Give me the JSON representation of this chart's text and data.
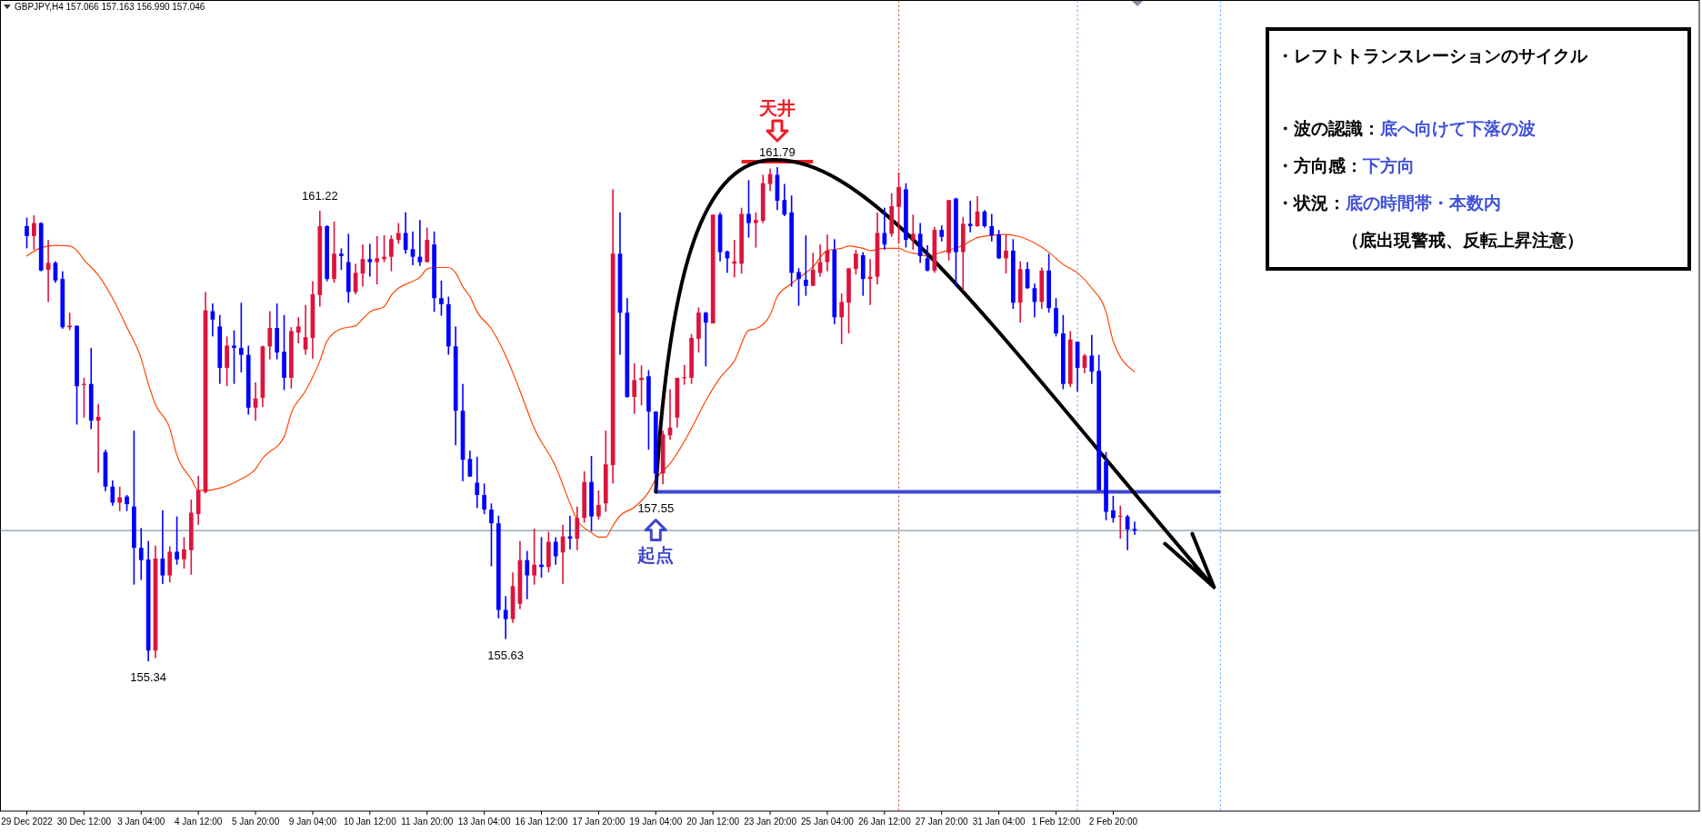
{
  "chart_data": {
    "type": "candlestick",
    "title": "・レフトトランスレーションのサイクル",
    "subtitle": "GBPJPY,H4  157.066 157.163 156.990 157.046",
    "categories": [
      "29 Dec 2022",
      null,
      null,
      null,
      null,
      null,
      null,
      null,
      "30 Dec 12:00",
      null,
      null,
      null,
      null,
      null,
      null,
      null,
      "3 Jan 04:00",
      null,
      null,
      null,
      null,
      null,
      null,
      null,
      "4 Jan 12:00",
      null,
      null,
      null,
      null,
      null,
      null,
      null,
      "5 Jan 20:00",
      null,
      null,
      null,
      null,
      null,
      null,
      null,
      "9 Jan 04:00",
      null,
      null,
      null,
      null,
      null,
      null,
      null,
      "10 Jan 12:00",
      null,
      null,
      null,
      null,
      null,
      null,
      null,
      "11 Jan 20:00",
      null,
      null,
      null,
      null,
      null,
      null,
      null,
      "13 Jan 04:00",
      null,
      null,
      null,
      null,
      null,
      null,
      null,
      "16 Jan 12:00",
      null,
      null,
      null,
      null,
      null,
      null,
      null,
      "17 Jan 20:00",
      null,
      null,
      null,
      null,
      null,
      null,
      null,
      "19 Jan 04:00",
      null,
      null,
      null,
      null,
      null,
      null,
      null,
      "20 Jan 12:00",
      null,
      null,
      null,
      null,
      null,
      null,
      null,
      "23 Jan 20:00",
      null,
      null,
      null,
      null,
      null,
      null,
      null,
      "25 Jan 04:00",
      null,
      null,
      null,
      null,
      null,
      null,
      null,
      "26 Jan 12:00",
      null,
      null,
      null,
      null,
      null,
      null,
      null,
      "27 Jan 20:00",
      null,
      null,
      null,
      null,
      null,
      null,
      null,
      "31 Jan 04:00",
      null,
      null,
      null,
      null,
      null,
      null,
      null,
      "1 Feb 12:00",
      null,
      null,
      null,
      null,
      null,
      null,
      null,
      "2 Feb 20:00",
      null,
      null,
      null
    ],
    "ohlc": [
      [
        161.02,
        161.13,
        160.73,
        160.89
      ],
      [
        160.89,
        161.16,
        160.71,
        161.06
      ],
      [
        161.06,
        161.07,
        160.43,
        160.44
      ],
      [
        160.45,
        160.84,
        160.03,
        160.54
      ],
      [
        160.54,
        160.56,
        160.28,
        160.31
      ],
      [
        160.33,
        160.43,
        159.68,
        159.7
      ],
      [
        159.7,
        159.89,
        159.66,
        159.72
      ],
      [
        159.72,
        159.72,
        158.43,
        158.93
      ],
      [
        158.95,
        159.04,
        158.52,
        158.96
      ],
      [
        158.96,
        159.43,
        158.37,
        158.48
      ],
      [
        158.48,
        158.7,
        157.8,
        158.53
      ],
      [
        158.07,
        158.1,
        157.56,
        157.62
      ],
      [
        157.62,
        157.7,
        157.37,
        157.41
      ],
      [
        157.41,
        157.62,
        157.3,
        157.48
      ],
      [
        157.49,
        157.51,
        157.3,
        157.39
      ],
      [
        157.36,
        158.35,
        156.34,
        156.82
      ],
      [
        156.82,
        157.08,
        156.4,
        156.66
      ],
      [
        156.67,
        156.91,
        155.34,
        155.48
      ],
      [
        155.48,
        156.85,
        155.38,
        156.68
      ],
      [
        156.68,
        157.31,
        156.35,
        156.46
      ],
      [
        156.46,
        156.84,
        156.37,
        156.77
      ],
      [
        156.77,
        157.23,
        156.6,
        156.67
      ],
      [
        156.67,
        156.96,
        156.55,
        156.8
      ],
      [
        156.79,
        157.45,
        156.47,
        157.28
      ],
      [
        157.26,
        157.76,
        157.12,
        157.57
      ],
      [
        157.55,
        160.16,
        157.53,
        159.92
      ],
      [
        159.91,
        160.01,
        159.58,
        159.8
      ],
      [
        159.71,
        159.86,
        158.96,
        159.17
      ],
      [
        159.17,
        159.58,
        158.93,
        159.46
      ],
      [
        159.46,
        159.66,
        158.96,
        159.43
      ],
      [
        159.43,
        160.02,
        159.11,
        159.34
      ],
      [
        159.34,
        159.46,
        158.56,
        158.65
      ],
      [
        158.65,
        158.98,
        158.48,
        158.77
      ],
      [
        158.78,
        159.46,
        158.66,
        159.45
      ],
      [
        159.45,
        159.91,
        159.28,
        159.69
      ],
      [
        159.69,
        160.01,
        159.28,
        159.37
      ],
      [
        159.38,
        159.86,
        158.88,
        159.04
      ],
      [
        159.04,
        159.7,
        158.9,
        159.65
      ],
      [
        159.63,
        159.83,
        159.49,
        159.71
      ],
      [
        159.41,
        159.99,
        159.34,
        159.57
      ],
      [
        159.56,
        160.3,
        159.29,
        160.13
      ],
      [
        160.12,
        161.22,
        159.97,
        161.02
      ],
      [
        161.02,
        161.03,
        160.3,
        160.33
      ],
      [
        160.33,
        161.08,
        160.28,
        160.66
      ],
      [
        160.66,
        160.73,
        160.45,
        160.63
      ],
      [
        160.55,
        160.92,
        160.02,
        160.16
      ],
      [
        160.16,
        160.53,
        160.13,
        160.41
      ],
      [
        160.4,
        160.78,
        160.23,
        160.59
      ],
      [
        160.59,
        160.79,
        160.36,
        160.55
      ],
      [
        160.55,
        160.89,
        160.26,
        160.6
      ],
      [
        160.59,
        160.9,
        160.55,
        160.62
      ],
      [
        160.62,
        160.9,
        160.43,
        160.85
      ],
      [
        160.84,
        161.06,
        160.79,
        160.93
      ],
      [
        160.93,
        161.2,
        160.66,
        160.71
      ],
      [
        160.72,
        160.95,
        160.51,
        160.62
      ],
      [
        160.62,
        161.1,
        160.5,
        160.55
      ],
      [
        160.55,
        161.0,
        160.55,
        160.84
      ],
      [
        160.78,
        160.95,
        159.9,
        160.08
      ],
      [
        160.08,
        160.31,
        159.85,
        160.0
      ],
      [
        160.0,
        160.1,
        159.34,
        159.45
      ],
      [
        159.45,
        159.71,
        158.16,
        158.61
      ],
      [
        158.61,
        158.96,
        157.69,
        157.97
      ],
      [
        157.98,
        158.09,
        157.75,
        157.75
      ],
      [
        157.67,
        158.01,
        157.34,
        157.51
      ],
      [
        157.51,
        157.66,
        157.26,
        157.32
      ],
      [
        157.32,
        157.4,
        156.58,
        157.14
      ],
      [
        157.14,
        157.24,
        155.9,
        156.01
      ],
      [
        156.01,
        156.19,
        155.63,
        155.89
      ],
      [
        155.89,
        156.5,
        155.84,
        156.32
      ],
      [
        156.09,
        156.91,
        156.02,
        156.66
      ],
      [
        156.66,
        156.78,
        156.15,
        156.46
      ],
      [
        156.46,
        157.07,
        156.34,
        156.6
      ],
      [
        156.6,
        156.96,
        156.43,
        156.57
      ],
      [
        156.57,
        157.03,
        156.5,
        156.9
      ],
      [
        156.9,
        156.96,
        156.6,
        156.71
      ],
      [
        156.76,
        157.12,
        156.35,
        156.97
      ],
      [
        156.97,
        157.24,
        156.8,
        156.94
      ],
      [
        156.94,
        157.36,
        156.79,
        157.21
      ],
      [
        157.21,
        157.82,
        157.15,
        157.68
      ],
      [
        157.68,
        158.02,
        157.04,
        157.23
      ],
      [
        157.23,
        157.57,
        157.19,
        157.38
      ],
      [
        157.4,
        158.35,
        157.29,
        157.91
      ],
      [
        157.9,
        161.5,
        157.66,
        160.66
      ],
      [
        160.66,
        161.2,
        159.34,
        159.89
      ],
      [
        159.89,
        160.08,
        158.78,
        158.79
      ],
      [
        158.79,
        159.23,
        158.57,
        159.01
      ],
      [
        159.01,
        159.2,
        158.68,
        159.04
      ],
      [
        159.06,
        159.14,
        158.1,
        158.6
      ],
      [
        158.6,
        158.6,
        157.55,
        157.79
      ],
      [
        157.79,
        158.35,
        157.65,
        158.3
      ],
      [
        158.29,
        158.89,
        158.23,
        158.39
      ],
      [
        158.52,
        159.04,
        158.39,
        159.04
      ],
      [
        159.04,
        159.21,
        158.95,
        159.05
      ],
      [
        159.04,
        159.61,
        158.96,
        159.56
      ],
      [
        159.55,
        159.96,
        159.37,
        159.89
      ],
      [
        159.89,
        159.9,
        159.19,
        159.76
      ],
      [
        159.75,
        161.17,
        159.75,
        161.17
      ],
      [
        161.17,
        161.2,
        160.56,
        160.68
      ],
      [
        160.69,
        160.7,
        160.41,
        160.6
      ],
      [
        160.53,
        160.84,
        160.35,
        160.56
      ],
      [
        160.53,
        161.26,
        160.4,
        161.18
      ],
      [
        161.18,
        161.62,
        160.87,
        161.06
      ],
      [
        161.06,
        161.2,
        160.74,
        161.1
      ],
      [
        161.09,
        161.69,
        161.06,
        161.58
      ],
      [
        161.57,
        161.77,
        161.48,
        161.7
      ],
      [
        161.69,
        161.79,
        161.23,
        161.35
      ],
      [
        161.36,
        161.57,
        161.15,
        161.17
      ],
      [
        161.2,
        161.42,
        160.23,
        160.41
      ],
      [
        160.42,
        160.47,
        159.98,
        160.33
      ],
      [
        160.32,
        160.9,
        160.11,
        160.24
      ],
      [
        160.24,
        160.67,
        160.24,
        160.45
      ],
      [
        160.41,
        160.78,
        160.36,
        160.55
      ],
      [
        160.55,
        160.91,
        160.43,
        160.7
      ],
      [
        160.71,
        160.85,
        159.74,
        159.83
      ],
      [
        159.83,
        160.14,
        159.48,
        160.03
      ],
      [
        160.02,
        160.47,
        159.62,
        160.47
      ],
      [
        160.46,
        160.71,
        160.39,
        160.66
      ],
      [
        160.64,
        160.68,
        160.11,
        160.33
      ],
      [
        160.33,
        160.59,
        159.99,
        160.36
      ],
      [
        160.36,
        161.2,
        160.26,
        160.93
      ],
      [
        160.93,
        161.26,
        160.71,
        160.78
      ],
      [
        160.92,
        161.45,
        160.88,
        161.28
      ],
      [
        161.27,
        161.72,
        160.79,
        161.53
      ],
      [
        161.5,
        161.58,
        160.74,
        160.84
      ],
      [
        160.84,
        161.17,
        160.71,
        160.92
      ],
      [
        160.92,
        161.06,
        160.54,
        160.63
      ],
      [
        160.6,
        160.77,
        160.43,
        160.44
      ],
      [
        160.44,
        161.01,
        160.41,
        160.97
      ],
      [
        160.97,
        161.03,
        160.82,
        160.88
      ],
      [
        160.67,
        161.36,
        160.57,
        161.36
      ],
      [
        161.38,
        161.39,
        160.23,
        160.68
      ],
      [
        160.68,
        161.14,
        160.18,
        161.05
      ],
      [
        161.05,
        161.35,
        160.94,
        161.02
      ],
      [
        161.02,
        161.41,
        161.01,
        161.21
      ],
      [
        161.21,
        161.23,
        161.0,
        161.02
      ],
      [
        161.02,
        161.18,
        160.82,
        160.9
      ],
      [
        160.91,
        160.97,
        160.59,
        160.6
      ],
      [
        160.6,
        160.91,
        160.4,
        160.7
      ],
      [
        160.7,
        160.85,
        159.94,
        160.02
      ],
      [
        160.02,
        160.56,
        159.76,
        160.46
      ],
      [
        160.46,
        160.55,
        160.2,
        160.21
      ],
      [
        160.21,
        160.27,
        159.83,
        160.03
      ],
      [
        160.03,
        160.48,
        159.94,
        160.44
      ],
      [
        160.44,
        160.66,
        159.89,
        159.95
      ],
      [
        159.95,
        160.08,
        159.58,
        159.62
      ],
      [
        159.62,
        159.86,
        158.89,
        158.96
      ],
      [
        158.96,
        159.65,
        158.92,
        159.54
      ],
      [
        159.51,
        159.51,
        158.86,
        159.17
      ],
      [
        159.17,
        159.35,
        159.1,
        159.33
      ],
      [
        159.33,
        159.6,
        158.96,
        159.12
      ],
      [
        159.13,
        159.34,
        157.57,
        157.57
      ],
      [
        157.95,
        158.07,
        157.18,
        157.29
      ],
      [
        157.31,
        157.5,
        157.15,
        157.21
      ],
      [
        157.23,
        157.37,
        156.94,
        157.24
      ],
      [
        157.23,
        157.25,
        156.79,
        157.06
      ],
      [
        157.066,
        157.163,
        156.99,
        157.046
      ]
    ],
    "colors": [
      "#0000ff",
      "#dc143c",
      "#0000ff",
      "#dc143c",
      "#0000ff",
      "#0000ff",
      "#dc143c",
      "#0000ff",
      "#dc143c",
      "#0000ff",
      "#dc143c",
      "#0000ff",
      "#0000ff",
      "#dc143c",
      "#0000ff",
      "#0000ff",
      "#0000ff",
      "#0000ff",
      "#dc143c",
      "#0000ff",
      "#dc143c",
      "#0000ff",
      "#dc143c",
      "#dc143c",
      "#dc143c",
      "#dc143c",
      "#0000ff",
      "#0000ff",
      "#dc143c",
      "#0000ff",
      "#0000ff",
      "#0000ff",
      "#dc143c",
      "#dc143c",
      "#dc143c",
      "#0000ff",
      "#0000ff",
      "#dc143c",
      "#dc143c",
      "#dc143c",
      "#dc143c",
      "#dc143c",
      "#0000ff",
      "#dc143c",
      "#0000ff",
      "#0000ff",
      "#dc143c",
      "#dc143c",
      "#0000ff",
      "#dc143c",
      "#dc143c",
      "#dc143c",
      "#dc143c",
      "#0000ff",
      "#0000ff",
      "#0000ff",
      "#dc143c",
      "#0000ff",
      "#0000ff",
      "#0000ff",
      "#0000ff",
      "#0000ff",
      "#0000ff",
      "#0000ff",
      "#0000ff",
      "#0000ff",
      "#0000ff",
      "#0000ff",
      "#dc143c",
      "#dc143c",
      "#0000ff",
      "#dc143c",
      "#0000ff",
      "#dc143c",
      "#0000ff",
      "#dc143c",
      "#0000ff",
      "#dc143c",
      "#dc143c",
      "#0000ff",
      "#dc143c",
      "#dc143c",
      "#dc143c",
      "#0000ff",
      "#0000ff",
      "#dc143c",
      "#dc143c",
      "#0000ff",
      "#0000ff",
      "#dc143c",
      "#dc143c",
      "#dc143c",
      "#dc143c",
      "#dc143c",
      "#dc143c",
      "#0000ff",
      "#dc143c",
      "#0000ff",
      "#0000ff",
      "#dc143c",
      "#dc143c",
      "#0000ff",
      "#dc143c",
      "#dc143c",
      "#dc143c",
      "#0000ff",
      "#0000ff",
      "#0000ff",
      "#0000ff",
      "#0000ff",
      "#dc143c",
      "#dc143c",
      "#dc143c",
      "#0000ff",
      "#dc143c",
      "#dc143c",
      "#dc143c",
      "#0000ff",
      "#dc143c",
      "#dc143c",
      "#0000ff",
      "#dc143c",
      "#dc143c",
      "#0000ff",
      "#dc143c",
      "#0000ff",
      "#0000ff",
      "#dc143c",
      "#0000ff",
      "#dc143c",
      "#0000ff",
      "#dc143c",
      "#0000ff",
      "#dc143c",
      "#0000ff",
      "#0000ff",
      "#0000ff",
      "#dc143c",
      "#0000ff",
      "#dc143c",
      "#0000ff",
      "#0000ff",
      "#dc143c",
      "#0000ff",
      "#0000ff",
      "#0000ff",
      "#dc143c",
      "#0000ff",
      "#dc143c",
      "#0000ff",
      "#0000ff",
      "#0000ff",
      "#0000ff",
      "#dc143c",
      "#0000ff",
      "#0000ff"
    ],
    "series": [
      {
        "type": "line",
        "color": "#ff4500",
        "values": [
          160.63,
          null,
          160.74,
          null,
          160.77,
          null,
          160.76,
          160.7,
          160.58,
          null,
          160.38,
          null,
          160.08,
          null,
          159.7,
          null,
          159.29,
          158.96,
          158.69,
          null,
          158.38,
          158.03,
          null,
          157.72,
          157.57,
          157.57,
          null,
          157.6,
          null,
          null,
          157.72,
          null,
          157.85,
          157.99,
          null,
          null,
          158.27,
          158.58,
          null,
          158.87,
          null,
          159.26,
          159.52,
          null,
          159.68,
          null,
          159.72,
          159.81,
          159.9,
          null,
          159.97,
          160.12,
          160.21,
          null,
          160.3,
          160.35,
          160.46,
          160.48,
          null,
          160.48,
          160.41,
          160.23,
          160.1,
          159.9,
          null,
          159.68,
          null,
          159.33,
          null,
          158.87,
          null,
          158.38,
          null,
          null,
          157.88,
          null,
          157.4,
          157.18,
          null,
          157.02,
          156.96,
          156.96,
          157.11,
          157.24,
          null,
          157.35,
          null,
          157.55,
          157.72,
          null,
          157.92,
          null,
          158.21,
          158.38,
          null,
          158.74,
          null,
          159.04,
          null,
          159.26,
          null,
          159.66,
          159.68,
          null,
          159.86,
          160.1,
          null,
          160.27,
          null,
          null,
          160.49,
          null,
          160.7,
          null,
          160.73,
          160.76,
          null,
          160.73,
          160.7,
          null,
          160.73,
          null,
          160.73,
          160.69,
          null,
          160.65,
          160.63,
          null,
          160.68,
          null,
          null,
          160.77,
          null,
          160.87,
          null,
          160.9,
          null,
          160.91,
          null,
          160.88,
          null,
          160.8,
          null,
          160.68,
          null,
          160.52,
          null,
          160.41,
          null,
          160.21,
          null,
          159.9,
          159.52,
          null,
          null,
          159.12
        ]
      }
    ],
    "ref_lines": [
      {
        "axis": "y",
        "value": 157.55,
        "color": "#3f48cc"
      },
      {
        "axis": "y",
        "value": 157.046,
        "color": "#8a9bab"
      }
    ],
    "annotations": [
      "・波の認識：底へ向けて下落の波",
      "・方向感：下方向",
      "・状況：底の時間帯・本数内",
      "（底出現警戒、反転上昇注意）",
      {
        "text": "161.22",
        "y": 161.22
      },
      {
        "text": "161.79",
        "y": 161.79
      },
      {
        "text": "天井",
        "y": 161.79
      },
      {
        "text": "155.34",
        "y": 155.34
      },
      {
        "text": "155.63",
        "y": 155.63
      },
      {
        "text": "157.55",
        "y": 157.55
      },
      {
        "text": "起点",
        "y": 157.55
      }
    ]
  }
}
